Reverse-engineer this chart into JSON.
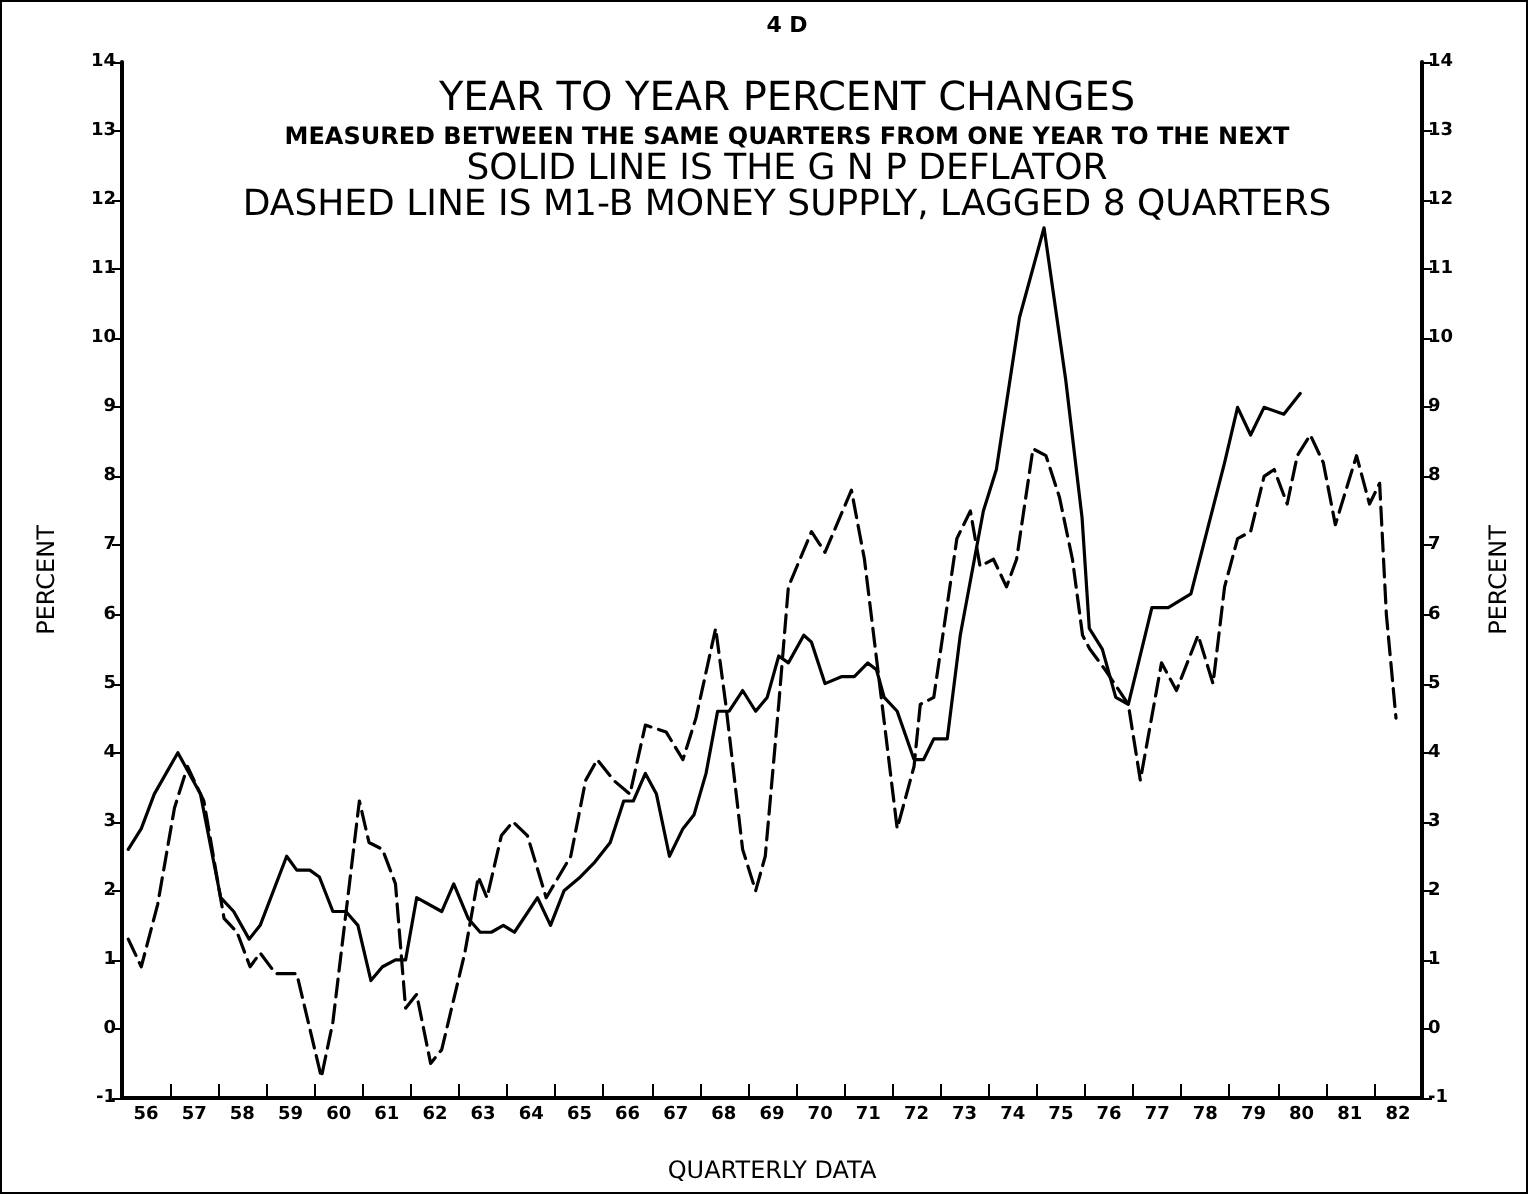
{
  "chart_data": {
    "type": "line",
    "title": "YEAR TO YEAR PERCENT CHANGES",
    "subtitle": "MEASURED BETWEEN THE SAME QUARTERS FROM ONE YEAR TO THE NEXT",
    "annotations": [
      "4 D",
      "SOLID LINE IS THE G N P DEFLATOR",
      "DASHED LINE IS M1-B MONEY SUPPLY, LAGGED 8 QUARTERS"
    ],
    "xlabel": "QUARTERLY DATA",
    "ylabel": "PERCENT",
    "y2label": "PERCENT",
    "xlim": [
      55.5,
      82.5
    ],
    "xticks": [
      56,
      {
        "value": 56.5,
        "label": null
      },
      57,
      {
        "value": 57.5,
        "label": null
      },
      58,
      {
        "value": 58.5,
        "label": null
      },
      59,
      {
        "value": 59.5,
        "label": null
      },
      60,
      {
        "value": 60.5,
        "label": null
      },
      61,
      {
        "value": 61.5,
        "label": null
      },
      62,
      {
        "value": 62.5,
        "label": null
      },
      63,
      {
        "value": 63.5,
        "label": null
      },
      64,
      {
        "value": 64.5,
        "label": null
      },
      65,
      {
        "value": 65.5,
        "label": null
      },
      66,
      {
        "value": 66.5,
        "label": null
      },
      67,
      {
        "value": 67.5,
        "label": null
      },
      68,
      {
        "value": 68.5,
        "label": null
      },
      69,
      {
        "value": 69.5,
        "label": null
      },
      70,
      {
        "value": 70.5,
        "label": null
      },
      71,
      {
        "value": 71.5,
        "label": null
      },
      72,
      {
        "value": 72.5,
        "label": null
      },
      73,
      {
        "value": 73.5,
        "label": null
      },
      74,
      {
        "value": 74.5,
        "label": null
      },
      75,
      {
        "value": 75.5,
        "label": null
      },
      76,
      {
        "value": 76.5,
        "label": null
      },
      77,
      {
        "value": 77.5,
        "label": null
      },
      78,
      {
        "value": 78.5,
        "label": null
      },
      79,
      {
        "value": 79.5,
        "label": null
      },
      80,
      {
        "value": 80.5,
        "label": null
      },
      81,
      {
        "value": 81.5,
        "label": null
      },
      82
    ],
    "ylim": [
      -1,
      14
    ],
    "yticks": [
      -1,
      0,
      1,
      2,
      3,
      4,
      5,
      6,
      7,
      8,
      9,
      10,
      11,
      12,
      13,
      14
    ],
    "y2lim": [
      -1,
      14
    ],
    "y2ticks": [
      -1,
      0,
      1,
      2,
      3,
      4,
      5,
      6,
      7,
      8,
      9,
      10,
      11,
      12,
      13,
      14
    ],
    "grid": false,
    "marker": "none",
    "series": [
      {
        "color": "#000000",
        "line_style": "solid",
        "x": [
          55.63,
          55.9,
          56.17,
          56.66,
          57.13,
          57.55,
          57.82,
          58.14,
          58.37,
          58.92,
          59.13,
          59.4,
          59.6,
          59.88,
          60.15,
          60.4,
          60.67,
          60.91,
          61.18,
          61.39,
          61.62,
          62.14,
          62.39,
          62.69,
          62.94,
          63.17,
          63.42,
          63.65,
          64.13,
          64.4,
          64.68,
          65.02,
          65.3,
          65.64,
          65.92,
          66.12,
          66.37,
          66.6,
          66.87,
          67.15,
          67.38,
          67.63,
          67.87,
          68.11,
          68.39,
          68.66,
          68.9,
          69.14,
          69.34,
          69.66,
          69.82,
          70.1,
          70.44,
          70.71,
          70.99,
          71.17,
          71.33,
          71.6,
          71.95,
          72.15,
          72.36,
          72.64,
          72.91,
          73.39,
          73.66,
          74.14,
          74.65,
          75.1,
          75.44,
          75.59,
          75.86,
          76.14,
          76.4,
          76.89,
          77.23,
          77.7,
          78.4,
          78.67,
          78.94,
          79.22,
          79.63,
          79.97
        ],
        "values": [
          2.6,
          2.9,
          3.4,
          4.0,
          3.4,
          1.9,
          1.7,
          1.3,
          1.5,
          2.5,
          2.3,
          2.3,
          2.2,
          1.7,
          1.7,
          1.5,
          0.7,
          0.9,
          1.0,
          1.0,
          1.9,
          1.7,
          2.1,
          1.6,
          1.4,
          1.4,
          1.5,
          1.4,
          1.9,
          1.5,
          2.0,
          2.2,
          2.4,
          2.7,
          3.3,
          3.3,
          3.7,
          3.4,
          2.5,
          2.9,
          3.1,
          3.7,
          4.6,
          4.6,
          4.9,
          4.6,
          4.8,
          5.4,
          5.3,
          5.7,
          5.6,
          5.0,
          5.1,
          5.1,
          5.3,
          5.2,
          4.8,
          4.6,
          3.9,
          3.9,
          4.2,
          4.2,
          5.7,
          7.5,
          8.1,
          10.3,
          11.6,
          9.4,
          7.4,
          5.8,
          5.5,
          4.8,
          4.7,
          6.1,
          6.1,
          6.3,
          8.2,
          9.0,
          8.6,
          9.0,
          8.9,
          9.2
        ]
      },
      {
        "color": "#000000",
        "line_style": "dashed",
        "x": [
          55.63,
          55.9,
          56.24,
          56.59,
          56.86,
          57.2,
          57.62,
          57.89,
          58.16,
          58.37,
          58.69,
          58.92,
          59.13,
          59.64,
          59.88,
          60.43,
          60.63,
          60.91,
          61.18,
          61.39,
          61.62,
          61.91,
          62.14,
          62.62,
          62.9,
          63.08,
          63.38,
          63.62,
          63.92,
          64.31,
          64.82,
          65.13,
          65.37,
          65.71,
          66.05,
          66.37,
          66.8,
          67.15,
          67.42,
          67.83,
          68.04,
          68.39,
          68.66,
          68.86,
          69.14,
          69.34,
          69.82,
          70.1,
          70.65,
          70.92,
          71.6,
          71.95,
          72.08,
          72.36,
          72.84,
          73.12,
          73.32,
          73.6,
          73.87,
          74.08,
          74.42,
          74.69,
          74.97,
          75.24,
          75.45,
          75.6,
          75.92,
          76.4,
          76.65,
          77.09,
          77.4,
          77.85,
          78.16,
          78.4,
          78.67,
          78.94,
          79.22,
          79.43,
          79.7,
          79.91,
          80.18,
          80.45,
          80.7,
          81.14,
          81.41,
          81.62,
          81.76,
          81.96
        ],
        "values": [
          1.3,
          0.9,
          1.8,
          3.2,
          3.8,
          3.3,
          1.6,
          1.4,
          0.9,
          1.1,
          0.8,
          0.8,
          0.8,
          -0.7,
          0.1,
          3.3,
          2.7,
          2.6,
          2.1,
          0.3,
          0.5,
          -0.5,
          -0.3,
          1.1,
          2.2,
          1.9,
          2.8,
          3.0,
          2.8,
          1.9,
          2.5,
          3.6,
          3.9,
          3.6,
          3.4,
          4.4,
          4.3,
          3.9,
          4.5,
          5.8,
          4.7,
          2.6,
          2.0,
          2.5,
          4.7,
          6.4,
          7.2,
          6.9,
          7.8,
          6.8,
          2.9,
          3.8,
          4.7,
          4.8,
          7.1,
          7.5,
          6.7,
          6.8,
          6.4,
          6.8,
          8.4,
          8.3,
          7.7,
          6.8,
          5.7,
          5.5,
          5.2,
          4.7,
          3.6,
          5.3,
          4.9,
          5.7,
          5.0,
          6.4,
          7.1,
          7.2,
          8.0,
          8.1,
          7.6,
          8.3,
          8.6,
          8.2,
          7.3,
          8.3,
          7.6,
          7.9,
          6.0,
          4.5
        ]
      }
    ]
  }
}
